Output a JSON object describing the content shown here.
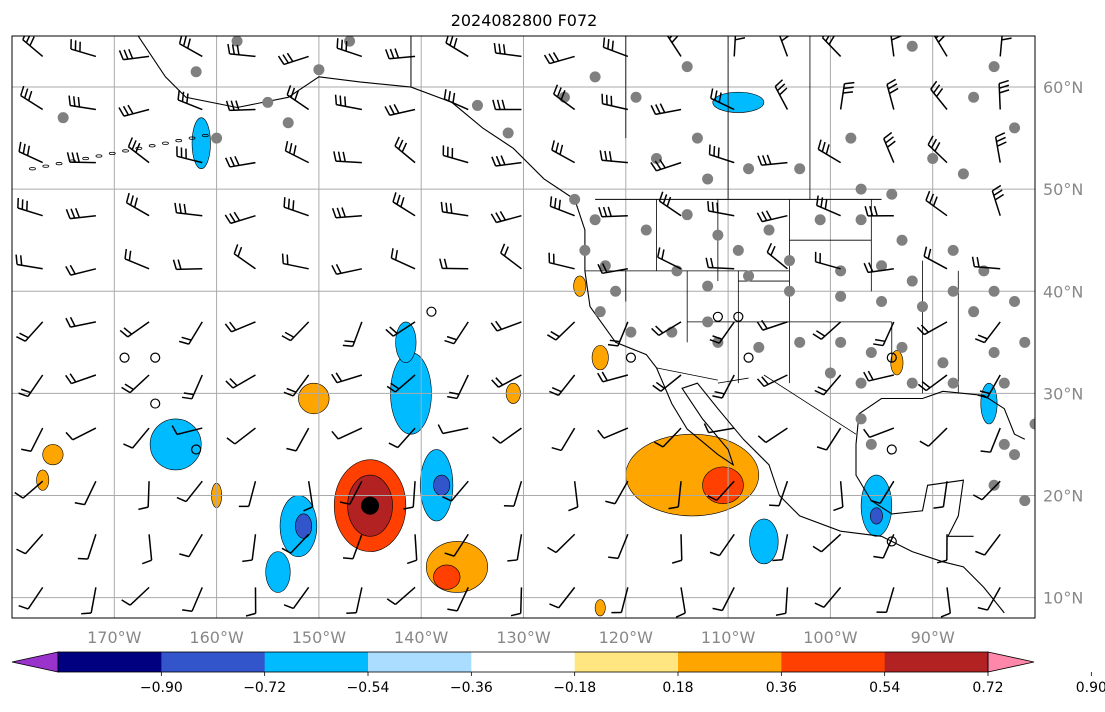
{
  "title": "2024082800 F072",
  "map": {
    "extent": {
      "lon_min": -180,
      "lon_max": -80,
      "lat_min": 8,
      "lat_max": 65
    },
    "gridlines": true,
    "lat_ticks": [
      {
        "value": 60,
        "label": "60°N"
      },
      {
        "value": 50,
        "label": "50°N"
      },
      {
        "value": 40,
        "label": "40°N"
      },
      {
        "value": 30,
        "label": "30°N"
      },
      {
        "value": 20,
        "label": "20°N"
      },
      {
        "value": 10,
        "label": "10°N"
      }
    ],
    "lon_ticks": [
      {
        "value": -170,
        "label": "170°W"
      },
      {
        "value": -160,
        "label": "160°W"
      },
      {
        "value": -150,
        "label": "150°W"
      },
      {
        "value": -140,
        "label": "140°W"
      },
      {
        "value": -130,
        "label": "130°W"
      },
      {
        "value": -120,
        "label": "120°W"
      },
      {
        "value": -110,
        "label": "110°W"
      },
      {
        "value": -100,
        "label": "100°W"
      },
      {
        "value": -90,
        "label": "90°W"
      }
    ],
    "storm_center": {
      "lon": -145,
      "lat": 19
    },
    "colors": {
      "land_lines": "#000000",
      "grid": "#aaaaaa",
      "station": "#808080"
    }
  },
  "colorbar": {
    "extend": "both",
    "levels": [
      -0.9,
      -0.72,
      -0.54,
      -0.36,
      -0.18,
      0.18,
      0.36,
      0.54,
      0.72,
      0.9
    ],
    "colors": [
      "#9933cc",
      "#000080",
      "#3355cc",
      "#00bbff",
      "#aaddff",
      "#ffffff",
      "#ffe680",
      "#ffa500",
      "#ff4000",
      "#b22222",
      "#ff88aa"
    ],
    "tick_labels": [
      "−0.90",
      "−0.72",
      "−0.54",
      "−0.36",
      "−0.18",
      "0.18",
      "0.36",
      "0.54",
      "0.72",
      "0.90"
    ]
  },
  "shaded_areas": [
    {
      "lon": -145,
      "lat": 19,
      "rx": 3.5,
      "ry": 4.5,
      "value": 0.6
    },
    {
      "lon": -145,
      "lat": 19,
      "rx": 2.2,
      "ry": 3.0,
      "value": 0.8
    },
    {
      "lon": -113.5,
      "lat": 22,
      "rx": 6.5,
      "ry": 4.0,
      "value": 0.45
    },
    {
      "lon": -110.5,
      "lat": 21,
      "rx": 2.0,
      "ry": 1.8,
      "value": 0.6
    },
    {
      "lon": -136.5,
      "lat": 13,
      "rx": 3.0,
      "ry": 2.5,
      "value": 0.45
    },
    {
      "lon": -137.5,
      "lat": 12,
      "rx": 1.3,
      "ry": 1.2,
      "value": 0.6
    },
    {
      "lon": -150.5,
      "lat": 29.5,
      "rx": 1.5,
      "ry": 1.5,
      "value": 0.45
    },
    {
      "lon": -141,
      "lat": 30,
      "rx": 2.0,
      "ry": 4.0,
      "value": -0.4
    },
    {
      "lon": -138.5,
      "lat": 21,
      "rx": 1.6,
      "ry": 3.5,
      "value": -0.45
    },
    {
      "lon": -138,
      "lat": 21,
      "rx": 0.8,
      "ry": 1.0,
      "value": -0.6
    },
    {
      "lon": -152,
      "lat": 17,
      "rx": 1.8,
      "ry": 3.0,
      "value": -0.45
    },
    {
      "lon": -151.5,
      "lat": 17,
      "rx": 0.8,
      "ry": 1.2,
      "value": -0.6
    },
    {
      "lon": -164,
      "lat": 25,
      "rx": 2.5,
      "ry": 2.5,
      "value": -0.4
    },
    {
      "lon": -154,
      "lat": 12.5,
      "rx": 1.2,
      "ry": 2.0,
      "value": -0.4
    },
    {
      "lon": -106.5,
      "lat": 15.5,
      "rx": 1.4,
      "ry": 2.2,
      "value": -0.4
    },
    {
      "lon": -95.5,
      "lat": 19,
      "rx": 1.5,
      "ry": 3.0,
      "value": -0.45
    },
    {
      "lon": -95.5,
      "lat": 18,
      "rx": 0.6,
      "ry": 0.8,
      "value": -0.6
    },
    {
      "lon": -161.5,
      "lat": 54.5,
      "rx": 0.9,
      "ry": 2.5,
      "value": -0.4
    },
    {
      "lon": -109,
      "lat": 58.5,
      "rx": 2.5,
      "ry": 1.0,
      "value": -0.4
    },
    {
      "lon": -176,
      "lat": 24,
      "rx": 1.0,
      "ry": 1.0,
      "value": 0.45
    },
    {
      "lon": -177,
      "lat": 21.5,
      "rx": 0.6,
      "ry": 1.0,
      "value": 0.45
    },
    {
      "lon": -160,
      "lat": 20,
      "rx": 0.5,
      "ry": 1.2,
      "value": 0.45
    },
    {
      "lon": -122.5,
      "lat": 33.5,
      "rx": 0.8,
      "ry": 1.2,
      "value": 0.45
    },
    {
      "lon": -131,
      "lat": 30,
      "rx": 0.7,
      "ry": 1.0,
      "value": 0.45
    },
    {
      "lon": -124.5,
      "lat": 40.5,
      "rx": 0.6,
      "ry": 1.0,
      "value": 0.45
    },
    {
      "lon": -93.5,
      "lat": 33,
      "rx": 0.6,
      "ry": 1.2,
      "value": 0.45
    },
    {
      "lon": -84.5,
      "lat": 29,
      "rx": 0.8,
      "ry": 2.0,
      "value": -0.4
    },
    {
      "lon": -122.5,
      "lat": 9,
      "rx": 0.5,
      "ry": 0.8,
      "value": 0.45
    },
    {
      "lon": -141.5,
      "lat": 35,
      "rx": 1.0,
      "ry": 2.0,
      "value": -0.4
    }
  ]
}
